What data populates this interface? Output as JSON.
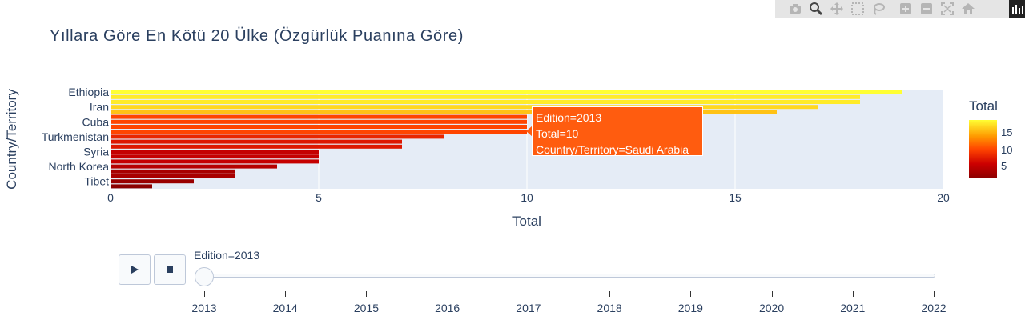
{
  "title": "Yıllara Göre En Kötü 20 Ülke (Özgürlük Puanına Göre)",
  "modebar": {
    "icons": [
      "camera-icon",
      "zoom-icon",
      "pan-icon",
      "box-select-icon",
      "lasso-icon",
      "zoom-in-icon",
      "zoom-out-icon",
      "autoscale-icon",
      "reset-axes-icon",
      "plotly-logo-icon"
    ]
  },
  "chart_data": {
    "type": "bar",
    "orientation": "horizontal",
    "xlabel": "Total",
    "ylabel": "Country/Territory",
    "xlim": [
      0,
      20
    ],
    "x_ticks": [
      "0",
      "5",
      "10",
      "15",
      "20"
    ],
    "y_tick_labels": [
      "Ethiopia",
      "Iran",
      "Cuba",
      "Turkmenistan",
      "Syria",
      "North Korea",
      "Tibet"
    ],
    "values_top_to_bottom": [
      19,
      18,
      18,
      17,
      16,
      10,
      10,
      10,
      10,
      8,
      7,
      7,
      5,
      5,
      5,
      4,
      3,
      3,
      2,
      1
    ],
    "grid": true,
    "colorbar": {
      "title": "Total",
      "ticks": [
        "15",
        "10",
        "5"
      ],
      "scale": [
        "#8b0000",
        "#cc0000",
        "#ff4500",
        "#ff9900",
        "#ffff33"
      ]
    },
    "hover": {
      "line1": "Edition=2013",
      "line2": "Total=10",
      "line3": "Country/Territory=Saudi Arabia"
    }
  },
  "slider": {
    "current_label": "Edition=2013",
    "years": [
      "2013",
      "2014",
      "2015",
      "2016",
      "2017",
      "2018",
      "2019",
      "2020",
      "2021",
      "2022"
    ]
  }
}
